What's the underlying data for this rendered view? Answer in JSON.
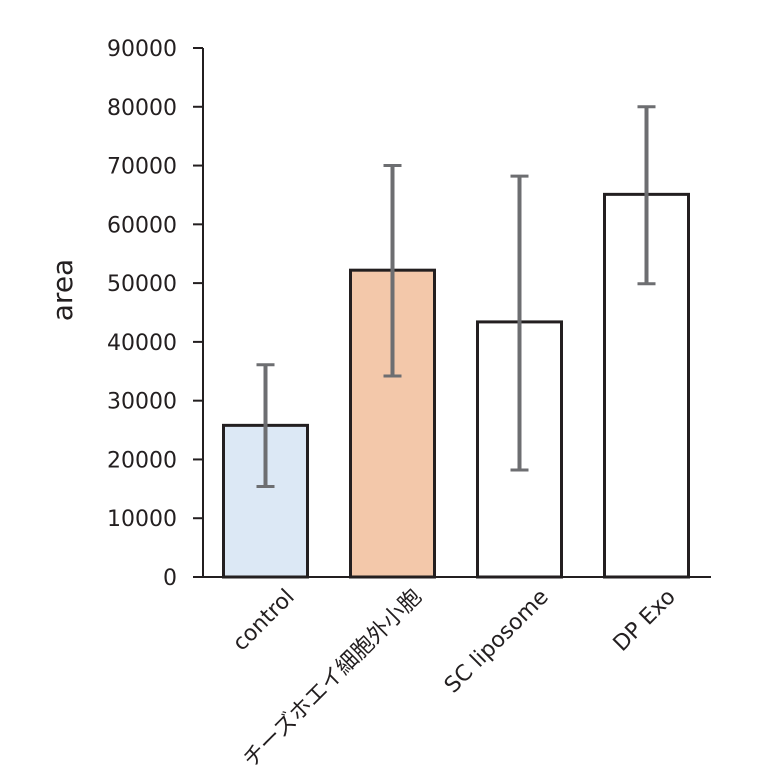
{
  "chart_data": {
    "type": "bar",
    "title": "",
    "xlabel": "",
    "ylabel": "area",
    "ylim": [
      0,
      90000
    ],
    "yticks": [
      0,
      10000,
      20000,
      30000,
      40000,
      50000,
      60000,
      70000,
      80000,
      90000
    ],
    "categories": [
      "control",
      "チーズホエイ細胞外小胞",
      "SC liposome",
      "DP Exo"
    ],
    "values": [
      25800,
      52200,
      43400,
      65100
    ],
    "error_low": [
      15400,
      34200,
      18200,
      49900
    ],
    "error_high": [
      36100,
      70000,
      68200,
      80000
    ],
    "bar_colors": [
      "#dce8f5",
      "#f3c8aa",
      "#ffffff",
      "#ffffff"
    ],
    "bar_edge_color": "#231f20",
    "error_color": "#6d6e71",
    "grid": false,
    "legend": "none"
  }
}
